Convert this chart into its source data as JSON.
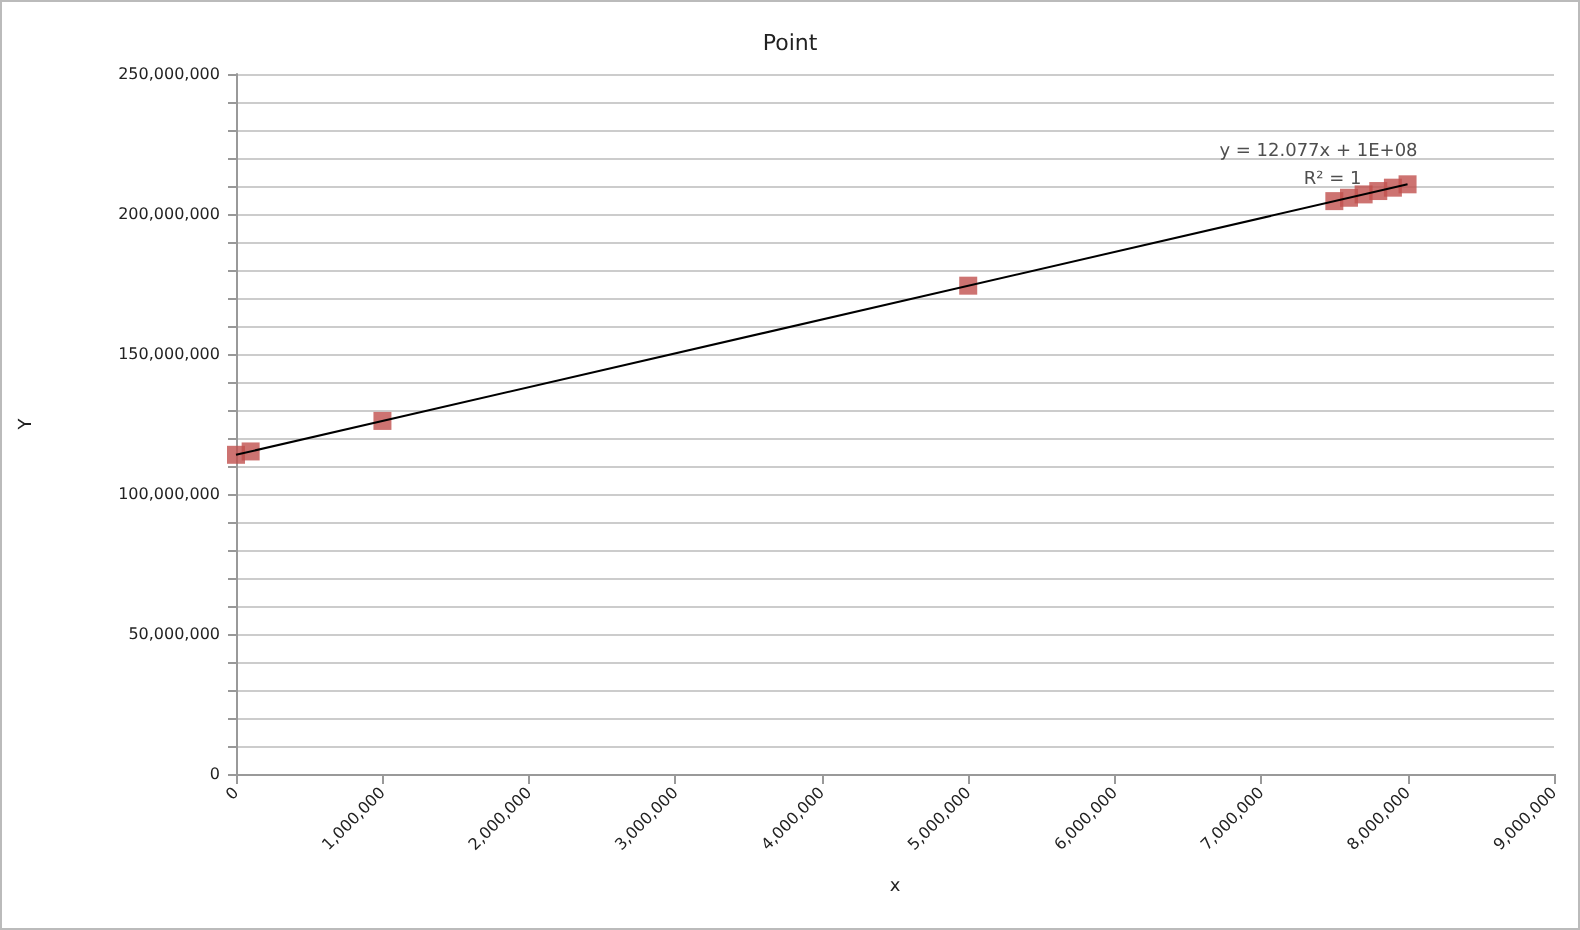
{
  "chart_data": {
    "type": "scatter",
    "title": "Point",
    "xlabel": "x",
    "ylabel": "Y",
    "marker": "square",
    "grid": "y",
    "legend": false,
    "xlim": [
      0,
      9000000
    ],
    "xticks": [
      0,
      {
        "value": 1000000,
        "label": "1,000,000"
      },
      {
        "value": 2000000,
        "label": "2,000,000"
      },
      {
        "value": 3000000,
        "label": "3,000,000"
      },
      {
        "value": 4000000,
        "label": "4,000,000"
      },
      {
        "value": 5000000,
        "label": "5,000,000"
      },
      {
        "value": 6000000,
        "label": "6,000,000"
      },
      {
        "value": 7000000,
        "label": "7,000,000"
      },
      {
        "value": 8000000,
        "label": "8,000,000"
      },
      {
        "value": 9000000,
        "label": "9,000,000"
      }
    ],
    "ylim": [
      0,
      250000000
    ],
    "yticks": [
      0,
      {
        "value": 10000000,
        "label": null
      },
      {
        "value": 20000000,
        "label": null
      },
      {
        "value": 30000000,
        "label": null
      },
      {
        "value": 40000000,
        "label": null
      },
      {
        "value": 50000000,
        "label": "50,000,000"
      },
      {
        "value": 60000000,
        "label": null
      },
      {
        "value": 70000000,
        "label": null
      },
      {
        "value": 80000000,
        "label": null
      },
      {
        "value": 90000000,
        "label": null
      },
      {
        "value": 100000000,
        "label": "100,000,000"
      },
      {
        "value": 110000000,
        "label": null
      },
      {
        "value": 120000000,
        "label": null
      },
      {
        "value": 130000000,
        "label": null
      },
      {
        "value": 140000000,
        "label": null
      },
      {
        "value": 150000000,
        "label": "150,000,000"
      },
      {
        "value": 160000000,
        "label": null
      },
      {
        "value": 170000000,
        "label": null
      },
      {
        "value": 180000000,
        "label": null
      },
      {
        "value": 190000000,
        "label": null
      },
      {
        "value": 200000000,
        "label": "200,000,000"
      },
      {
        "value": 210000000,
        "label": null
      },
      {
        "value": 220000000,
        "label": null
      },
      {
        "value": 230000000,
        "label": null
      },
      {
        "value": 240000000,
        "label": null
      },
      {
        "value": 250000000,
        "label": "250,000,000"
      }
    ],
    "series": [
      {
        "type": "scatter",
        "color": "#c0504d",
        "x": [
          0,
          100000,
          1000000,
          5000000,
          7500000,
          7600000,
          7700000,
          7800000,
          7900000,
          8000000
        ],
        "values": [
          114000000,
          115200000,
          126100000,
          174400000,
          204600000,
          205800000,
          207000000,
          208200000,
          209400000,
          210600000
        ]
      },
      {
        "type": "line",
        "color": "#000000",
        "marker": "none",
        "line_style": "solid",
        "x": [
          0,
          8000000
        ],
        "values": [
          114000000,
          210600000
        ]
      }
    ],
    "annotations": [
      {
        "text": "y = 12.077x + 1E+08",
        "x": 8000000,
        "y": 210600000
      },
      {
        "text": "R² = 1",
        "x": 8000000,
        "y": 210600000
      }
    ]
  }
}
